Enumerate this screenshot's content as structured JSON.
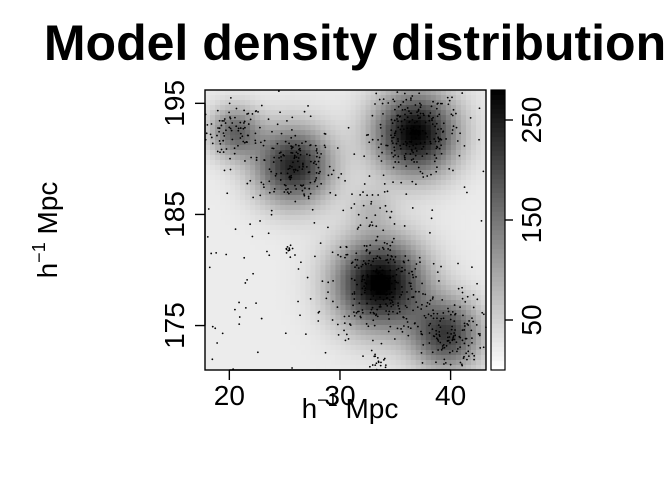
{
  "chart_data": {
    "type": "heatmap",
    "title": "Model density distribution",
    "xlabel": {
      "base": "h",
      "exponent": "−1",
      "unit": " Mpc"
    },
    "ylabel": {
      "base": "h",
      "exponent": "−1",
      "unit": " Mpc"
    },
    "xlim": [
      17.8,
      43.2
    ],
    "ylim": [
      171.0,
      196.2
    ],
    "x_ticks": [
      20,
      30,
      40
    ],
    "y_ticks": [
      175,
      185,
      195
    ],
    "colorbar": {
      "range": [
        0,
        280
      ],
      "ticks": [
        50,
        150,
        250
      ],
      "low_color": "#ffffff",
      "high_color": "#000000"
    },
    "background_level": 10,
    "clusters": [
      {
        "x": 20.5,
        "y": 192.4,
        "sigma": 1.6,
        "peak": 150,
        "points": 70
      },
      {
        "x": 25.8,
        "y": 189.4,
        "sigma": 2.4,
        "peak": 230,
        "points": 150
      },
      {
        "x": 36.8,
        "y": 192.3,
        "sigma": 2.6,
        "peak": 270,
        "points": 240
      },
      {
        "x": 32.8,
        "y": 185.6,
        "sigma": 1.4,
        "peak": 45,
        "points": 25
      },
      {
        "x": 33.6,
        "y": 178.8,
        "sigma": 2.8,
        "peak": 280,
        "points": 260
      },
      {
        "x": 39.6,
        "y": 174.2,
        "sigma": 2.2,
        "peak": 200,
        "points": 150
      },
      {
        "x": 25.5,
        "y": 181.8,
        "sigma": 0.5,
        "peak": 0,
        "points": 12
      },
      {
        "x": 33.6,
        "y": 171.8,
        "sigma": 0.5,
        "peak": 0,
        "points": 15
      }
    ],
    "field_points": 140
  }
}
